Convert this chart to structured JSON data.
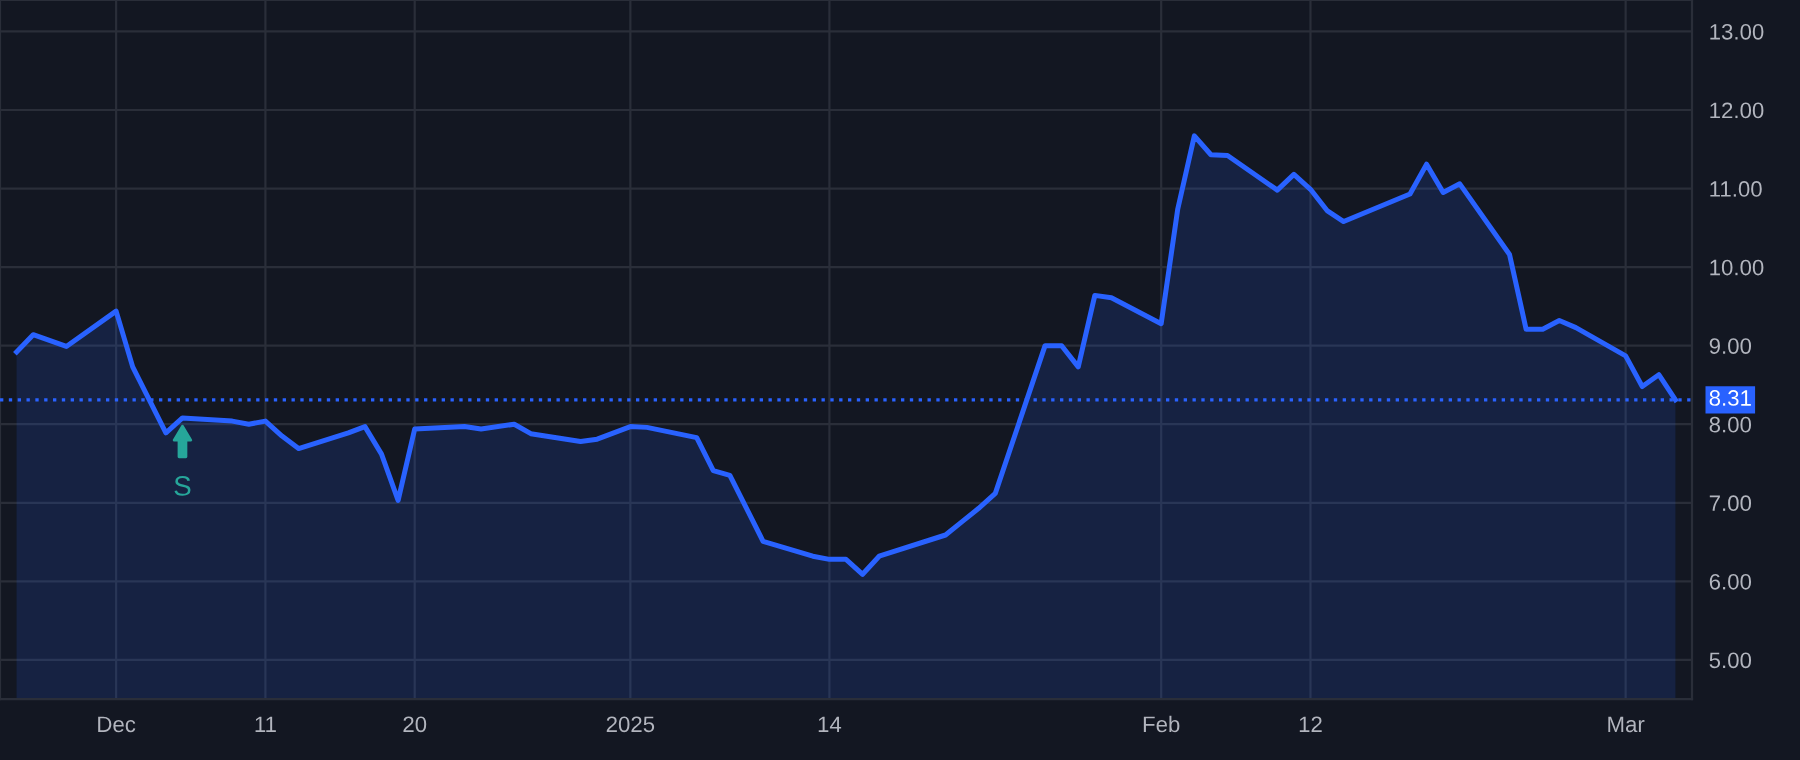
{
  "chart_data": {
    "type": "area",
    "x": [
      "2024-11-26",
      "2024-11-27",
      "2024-11-29",
      "2024-12-02",
      "2024-12-03",
      "2024-12-04",
      "2024-12-05",
      "2024-12-06",
      "2024-12-09",
      "2024-12-10",
      "2024-12-11",
      "2024-12-12",
      "2024-12-13",
      "2024-12-16",
      "2024-12-17",
      "2024-12-18",
      "2024-12-19",
      "2024-12-20",
      "2024-12-23",
      "2024-12-24",
      "2024-12-26",
      "2024-12-27",
      "2024-12-30",
      "2024-12-31",
      "2025-01-02",
      "2025-01-03",
      "2025-01-06",
      "2025-01-07",
      "2025-01-08",
      "2025-01-10",
      "2025-01-13",
      "2025-01-14",
      "2025-01-15",
      "2025-01-16",
      "2025-01-17",
      "2025-01-21",
      "2025-01-22",
      "2025-01-23",
      "2025-01-24",
      "2025-01-27",
      "2025-01-28",
      "2025-01-29",
      "2025-01-30",
      "2025-01-31",
      "2025-02-03",
      "2025-02-04",
      "2025-02-05",
      "2025-02-06",
      "2025-02-07",
      "2025-02-10",
      "2025-02-11",
      "2025-02-12",
      "2025-02-13",
      "2025-02-14",
      "2025-02-18",
      "2025-02-19",
      "2025-02-20",
      "2025-02-21",
      "2025-02-24",
      "2025-02-25",
      "2025-02-26",
      "2025-02-27",
      "2025-02-28",
      "2025-03-03",
      "2025-03-04",
      "2025-03-05",
      "2025-03-06"
    ],
    "series": [
      {
        "color": "#2962ff",
        "values": [
          8.92,
          9.14,
          8.99,
          9.44,
          8.73,
          8.31,
          7.89,
          8.08,
          8.04,
          8.0,
          8.04,
          7.85,
          7.69,
          7.89,
          7.97,
          7.62,
          7.03,
          7.94,
          7.97,
          7.94,
          8.0,
          7.88,
          7.78,
          7.81,
          7.97,
          7.96,
          7.83,
          7.41,
          7.35,
          6.51,
          6.32,
          6.28,
          6.28,
          6.09,
          6.32,
          6.59,
          6.76,
          6.93,
          7.12,
          9.0,
          9.0,
          8.73,
          9.64,
          9.61,
          9.28,
          10.74,
          11.67,
          11.43,
          11.42,
          10.98,
          11.18,
          10.99,
          10.72,
          10.58,
          10.93,
          11.31,
          10.95,
          11.06,
          10.16,
          9.21,
          9.21,
          9.32,
          9.23,
          8.87,
          8.48,
          8.63,
          8.31
        ]
      }
    ],
    "xlim": [
      "2024-11-25",
      "2025-03-07"
    ],
    "xticks": [
      {
        "value": "2024-12-02",
        "label": "Dec"
      },
      {
        "value": "2024-12-11",
        "label": "11"
      },
      {
        "value": "2024-12-20",
        "label": "20"
      },
      {
        "value": "2025-01-02",
        "label": "2025"
      },
      {
        "value": "2025-01-14",
        "label": "14"
      },
      {
        "value": "2025-02-03",
        "label": "Feb"
      },
      {
        "value": "2025-02-12",
        "label": "12"
      },
      {
        "value": "2025-03-03",
        "label": "Mar"
      }
    ],
    "ylim": [
      4.5,
      13.4
    ],
    "yticks": [
      {
        "value": 5,
        "label": "5.00"
      },
      {
        "value": 6,
        "label": "6.00"
      },
      {
        "value": 7,
        "label": "7.00"
      },
      {
        "value": 8,
        "label": "8.00"
      },
      {
        "value": 9,
        "label": "9.00"
      },
      {
        "value": 10,
        "label": "10.00"
      },
      {
        "value": 11,
        "label": "11.00"
      },
      {
        "value": 12,
        "label": "12.00"
      },
      {
        "value": 13,
        "label": "13.00"
      }
    ],
    "ref_lines": [
      {
        "axis": "y",
        "value": 8.31,
        "label": "8.31",
        "color": "#2962ff",
        "line_style": "dotted"
      }
    ],
    "annotations": [
      {
        "text": "S",
        "x": "2024-12-06",
        "y": 8.08
      }
    ],
    "grid": true,
    "legend": false,
    "line_style": "solid",
    "marker": "none"
  }
}
